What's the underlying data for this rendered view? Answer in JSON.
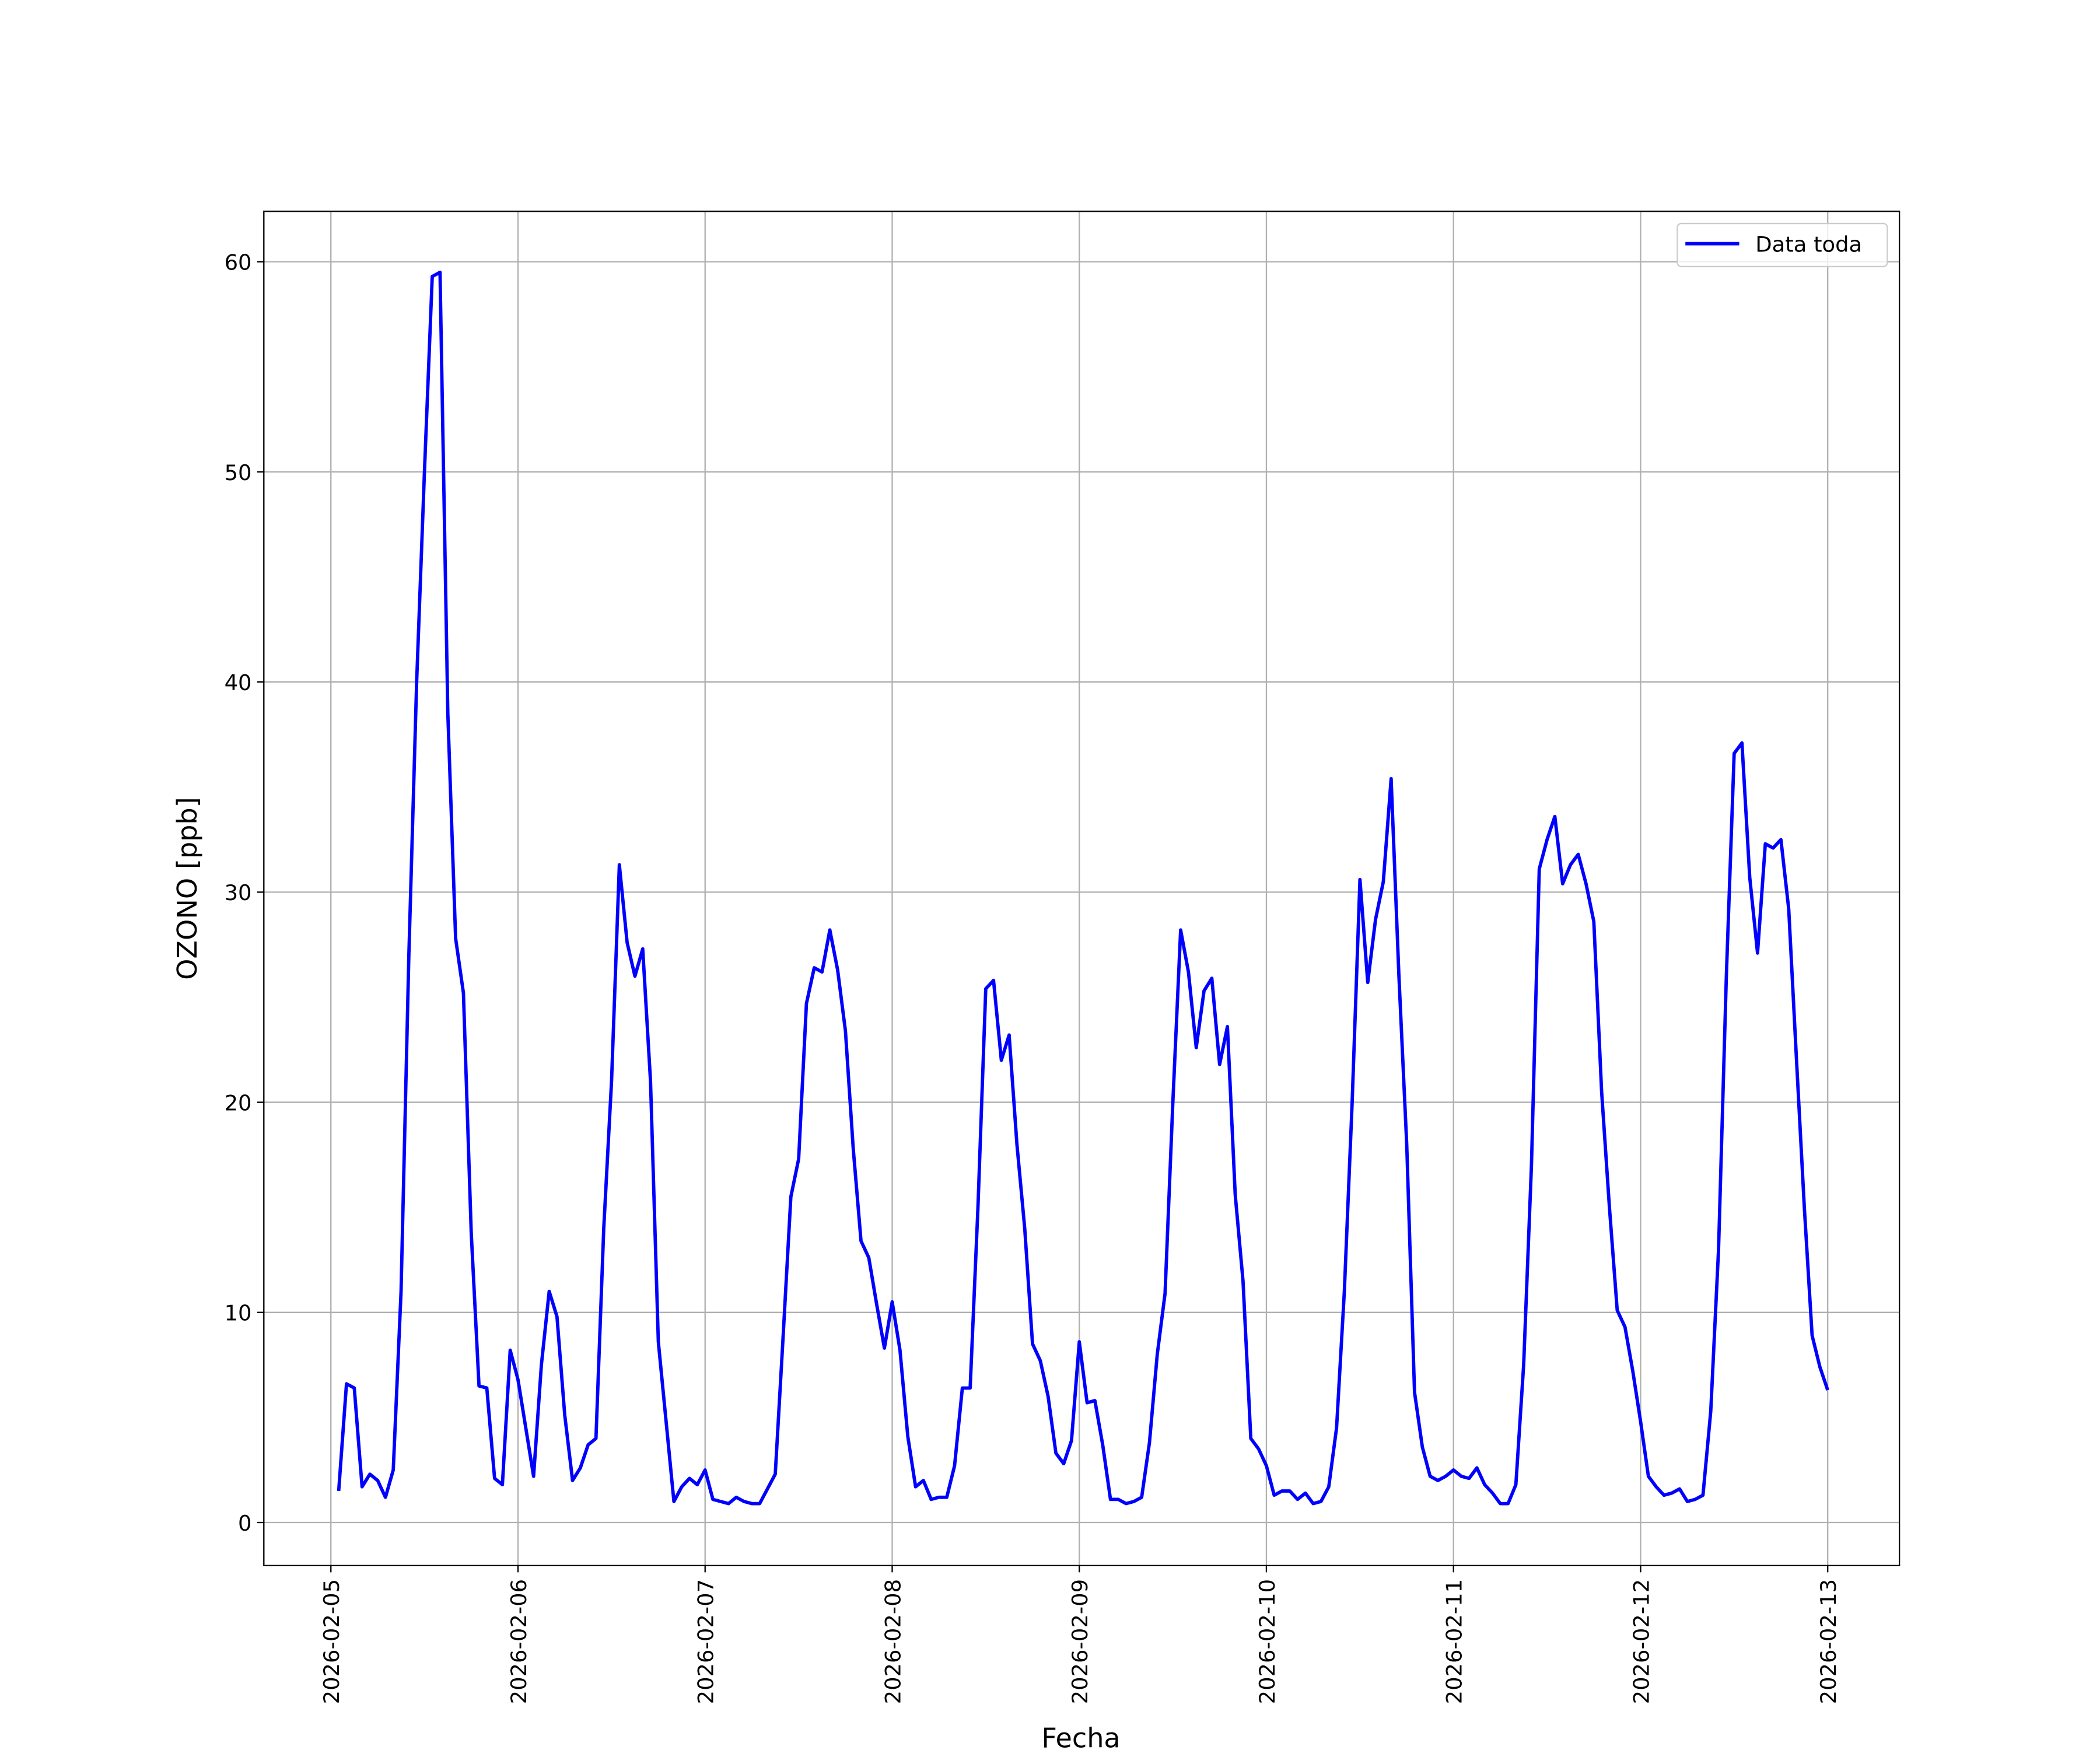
{
  "chart_data": {
    "type": "line",
    "xlabel": "Fecha",
    "ylabel": "OZONO [ppb]",
    "x": [
      1,
      2,
      3,
      4,
      5,
      6,
      7,
      8,
      9,
      10,
      11,
      12,
      13,
      14,
      15,
      16,
      17,
      18,
      19,
      20,
      21,
      22,
      23,
      24,
      25,
      26,
      27,
      28,
      29,
      30,
      31,
      32,
      33,
      34,
      35,
      36,
      37,
      38,
      39,
      40,
      41,
      42,
      43,
      44,
      45,
      46,
      47,
      48,
      49,
      50,
      51,
      52,
      53,
      54,
      55,
      57,
      58,
      59,
      60,
      61,
      62,
      63,
      64,
      65,
      66,
      67,
      68,
      69,
      70,
      71,
      72,
      73,
      74,
      75,
      76,
      77,
      78,
      79,
      80,
      81,
      82,
      83,
      84,
      85,
      86,
      87,
      88,
      89,
      90,
      91,
      92,
      93,
      94,
      95,
      96,
      97,
      98,
      99,
      100,
      101,
      102,
      103,
      104,
      105,
      106,
      107,
      108,
      109,
      110,
      111,
      112,
      113,
      114,
      115,
      116,
      117,
      118,
      119,
      120,
      121,
      122,
      123,
      124,
      125,
      126,
      127,
      128,
      129,
      130,
      131,
      132,
      133,
      134,
      135,
      136,
      137,
      138,
      139,
      140,
      141,
      142,
      143,
      144,
      145,
      146,
      147,
      148,
      149,
      150,
      151,
      152,
      153,
      154,
      155,
      156,
      157,
      158,
      159,
      160,
      161,
      162,
      163,
      164,
      165,
      166,
      167,
      168,
      169,
      170,
      171,
      172,
      173,
      174,
      175,
      176,
      177,
      178,
      179,
      180,
      181,
      182,
      183,
      184,
      185,
      186,
      187,
      188,
      189,
      190,
      191,
      192
    ],
    "series": [
      {
        "name": "Data toda",
        "color": "#0000ff",
        "values": [
          1.5,
          6.6,
          6.4,
          1.7,
          2.3,
          2.0,
          1.2,
          2.5,
          11,
          27,
          40,
          50,
          59.3,
          59.5,
          38.5,
          27.8,
          25.2,
          13.8,
          6.5,
          6.4,
          2.1,
          1.8,
          8.2,
          6.8,
          4.5,
          2.2,
          7.5,
          11.0,
          9.8,
          5.1,
          2.0,
          2.6,
          3.7,
          4.0,
          14,
          21,
          31.3,
          27.6,
          26.0,
          27.3,
          21,
          8.6,
          4.8,
          1.0,
          1.7,
          2.1,
          1.8,
          2.5,
          1.1,
          1.0,
          0.9,
          1.2,
          1.0,
          0.9,
          0.9,
          2.3,
          8.8,
          15.5,
          17.3,
          24.7,
          26.4,
          26.2,
          28.2,
          26.3,
          23.4,
          17.8,
          13.4,
          12.6,
          10.4,
          8.3,
          10.5,
          8.2,
          4.1,
          1.7,
          2.0,
          1.1,
          1.2,
          1.2,
          2.7,
          6.4,
          6.4,
          15,
          25.4,
          25.8,
          22.0,
          23.2,
          18,
          14,
          8.5,
          7.7,
          6.0,
          3.3,
          2.8,
          3.9,
          8.6,
          5.7,
          5.8,
          3.7,
          1.1,
          1.1,
          0.9,
          1.0,
          1.2,
          3.8,
          8,
          10.9,
          20,
          28.2,
          26.2,
          22.6,
          25.3,
          25.9,
          21.8,
          23.6,
          15.6,
          11.5,
          4.0,
          3.5,
          2.7,
          1.3,
          1.5,
          1.5,
          1.1,
          1.4,
          0.9,
          1.0,
          1.7,
          4.5,
          11,
          20,
          30.6,
          25.7,
          28.7,
          30.5,
          35.4,
          26,
          18,
          6.2,
          3.6,
          2.2,
          2.0,
          2.2,
          2.5,
          2.2,
          2.1,
          2.6,
          1.8,
          1.4,
          0.9,
          0.9,
          1.8,
          7.5,
          17,
          31.1,
          32.5,
          33.6,
          30.4,
          31.3,
          31.8,
          30.4,
          28.6,
          20.5,
          15,
          10.1,
          9.3,
          7.2,
          4.8,
          2.2,
          1.7,
          1.3,
          1.4,
          1.6,
          1.0,
          1.1,
          1.3,
          5.3,
          13,
          26,
          36.6,
          37.1,
          30.7,
          27.1,
          32.3,
          32.1,
          32.5,
          29.2,
          22,
          15,
          8.9,
          7.4,
          6.3
        ]
      }
    ],
    "xlim": [
      -8.6,
      201.2
    ],
    "xticks": [
      {
        "value": 0,
        "label": "2026-02-05"
      },
      {
        "value": 24,
        "label": "2026-02-06"
      },
      {
        "value": 48,
        "label": "2026-02-07"
      },
      {
        "value": 72,
        "label": "2026-02-08"
      },
      {
        "value": 96,
        "label": "2026-02-09"
      },
      {
        "value": 120,
        "label": "2026-02-10"
      },
      {
        "value": 144,
        "label": "2026-02-11"
      },
      {
        "value": 168,
        "label": "2026-02-12"
      },
      {
        "value": 192,
        "label": "2026-02-13"
      }
    ],
    "ylim": [
      -2.05,
      62.4
    ],
    "yticks": [
      0,
      10,
      20,
      30,
      40,
      50,
      60
    ],
    "grid": true,
    "legend": "upper right"
  }
}
